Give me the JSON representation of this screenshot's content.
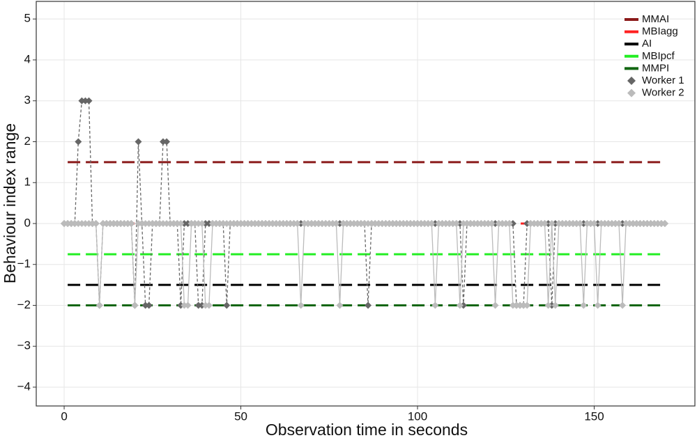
{
  "chart_data": {
    "type": "line",
    "xlabel": "Observation time in seconds",
    "ylabel": "Behaviour index range",
    "xlim": [
      -7.9,
      178.5
    ],
    "ylim": [
      -4.46,
      5.43
    ],
    "xticks": [
      0,
      50,
      100,
      150
    ],
    "yticks": [
      {
        "value": -4,
        "label": "−4"
      },
      {
        "value": -3,
        "label": "−3"
      },
      {
        "value": -2,
        "label": "−2"
      },
      {
        "value": -1,
        "label": "−1"
      },
      0,
      1,
      2,
      3,
      4,
      5
    ],
    "grid": true,
    "legend": "top-right",
    "x": [
      0,
      1,
      2,
      3,
      4,
      5,
      6,
      7,
      8,
      9,
      10,
      11,
      12,
      13,
      14,
      15,
      16,
      17,
      18,
      19,
      20,
      21,
      22,
      23,
      24,
      25,
      26,
      27,
      28,
      29,
      30,
      31,
      32,
      33,
      34,
      35,
      36,
      37,
      38,
      39,
      40,
      41,
      42,
      43,
      44,
      45,
      46,
      47,
      48,
      49,
      50,
      51,
      52,
      53,
      54,
      55,
      56,
      57,
      58,
      59,
      60,
      61,
      62,
      63,
      64,
      65,
      66,
      67,
      68,
      69,
      70,
      71,
      72,
      73,
      74,
      75,
      76,
      77,
      78,
      79,
      80,
      81,
      82,
      83,
      84,
      85,
      86,
      87,
      88,
      89,
      90,
      91,
      92,
      93,
      94,
      95,
      96,
      97,
      98,
      99,
      100,
      101,
      102,
      103,
      104,
      105,
      106,
      107,
      108,
      109,
      110,
      111,
      112,
      113,
      114,
      115,
      116,
      117,
      118,
      119,
      120,
      121,
      122,
      123,
      124,
      125,
      126,
      127,
      128,
      129,
      130,
      131,
      132,
      133,
      134,
      135,
      136,
      137,
      138,
      139,
      140,
      141,
      142,
      143,
      144,
      145,
      146,
      147,
      148,
      149,
      150,
      151,
      152,
      153,
      154,
      155,
      156,
      157,
      158,
      159,
      160,
      161,
      162,
      163,
      164,
      165,
      166,
      167,
      168,
      169,
      170
    ],
    "series": [
      {
        "name": "MMAI",
        "color": "#8b1a1a",
        "style": "dashed",
        "x": [
          1,
          170
        ],
        "values": [
          1.5,
          1.5
        ]
      },
      {
        "name": "MBIagg",
        "color": "#ff2020",
        "style": "dashed",
        "x": [
          1,
          170
        ],
        "values": [
          0,
          0
        ]
      },
      {
        "name": "AI",
        "color": "#000000",
        "style": "dashed",
        "x": [
          1,
          170
        ],
        "values": [
          -1.5,
          -1.5
        ]
      },
      {
        "name": "MBIpcf",
        "color": "#22ee22",
        "style": "dashed",
        "x": [
          1,
          170
        ],
        "values": [
          -0.75,
          -0.75
        ]
      },
      {
        "name": "MMPI",
        "color": "#116611",
        "style": "dashed",
        "x": [
          1,
          170
        ],
        "values": [
          -2,
          -2
        ]
      },
      {
        "name": "Worker 1",
        "color": "#666666",
        "style": "dotted",
        "marker": "diamond",
        "values": [
          0,
          0,
          0,
          0,
          2,
          3,
          3,
          3,
          0,
          0,
          -2,
          0,
          0,
          0,
          0,
          0,
          0,
          0,
          0,
          0,
          -2,
          2,
          0,
          -2,
          -2,
          0,
          0,
          0,
          2,
          2,
          0,
          0,
          0,
          -2,
          0,
          0,
          0,
          0,
          -2,
          -2,
          0,
          0,
          0,
          0,
          0,
          0,
          -2,
          0,
          0,
          0,
          0,
          0,
          0,
          0,
          0,
          0,
          0,
          0,
          0,
          0,
          0,
          0,
          0,
          0,
          0,
          0,
          0,
          0,
          0,
          0,
          0,
          0,
          0,
          0,
          0,
          0,
          0,
          0,
          0,
          0,
          0,
          0,
          0,
          0,
          0,
          0,
          -2,
          0,
          0,
          0,
          0,
          0,
          0,
          0,
          0,
          0,
          0,
          0,
          0,
          0,
          0,
          0,
          0,
          0,
          0,
          0,
          0,
          0,
          0,
          0,
          0,
          0,
          0,
          -2,
          0,
          0,
          0,
          0,
          0,
          0,
          0,
          0,
          0,
          0,
          0,
          0,
          0,
          0,
          -2,
          -2,
          -2,
          0,
          0,
          0,
          0,
          0,
          0,
          0,
          -2,
          0,
          0,
          0,
          0,
          0,
          0,
          0,
          0,
          0,
          0,
          0,
          0,
          0,
          0,
          0,
          0,
          0,
          0,
          0,
          0,
          0,
          0,
          0,
          0,
          0,
          0,
          0,
          0,
          0,
          0,
          0,
          0
        ]
      },
      {
        "name": "Worker 2",
        "color": "#bbbbbb",
        "style": "solid",
        "marker": "diamond",
        "values": [
          0,
          0,
          0,
          0,
          0,
          0,
          0,
          0,
          0,
          0,
          -2,
          0,
          0,
          0,
          0,
          0,
          0,
          0,
          0,
          0,
          -2,
          0,
          0,
          0,
          0,
          0,
          0,
          0,
          0,
          0,
          0,
          0,
          0,
          0,
          -2,
          -2,
          0,
          0,
          0,
          0,
          -2,
          -2,
          0,
          0,
          0,
          0,
          0,
          0,
          0,
          0,
          0,
          0,
          0,
          0,
          0,
          0,
          0,
          0,
          0,
          0,
          0,
          0,
          0,
          0,
          0,
          0,
          0,
          -2,
          0,
          0,
          0,
          0,
          0,
          0,
          0,
          0,
          0,
          0,
          -2,
          0,
          0,
          0,
          0,
          0,
          0,
          0,
          0,
          0,
          0,
          0,
          0,
          0,
          0,
          0,
          0,
          0,
          0,
          0,
          0,
          0,
          0,
          0,
          0,
          0,
          0,
          -2,
          0,
          0,
          0,
          0,
          0,
          0,
          -2,
          0,
          0,
          0,
          0,
          0,
          0,
          0,
          0,
          0,
          -2,
          0,
          0,
          0,
          0,
          -2,
          -2,
          -2,
          -2,
          -2,
          0,
          0,
          0,
          0,
          0,
          -2,
          0,
          -2,
          0,
          0,
          0,
          0,
          0,
          0,
          0,
          -2,
          0,
          0,
          0,
          -2,
          0,
          0,
          0,
          0,
          0,
          0,
          -2,
          0,
          0,
          0,
          0,
          0,
          0,
          0,
          0,
          0,
          0,
          0,
          0
        ]
      }
    ]
  }
}
